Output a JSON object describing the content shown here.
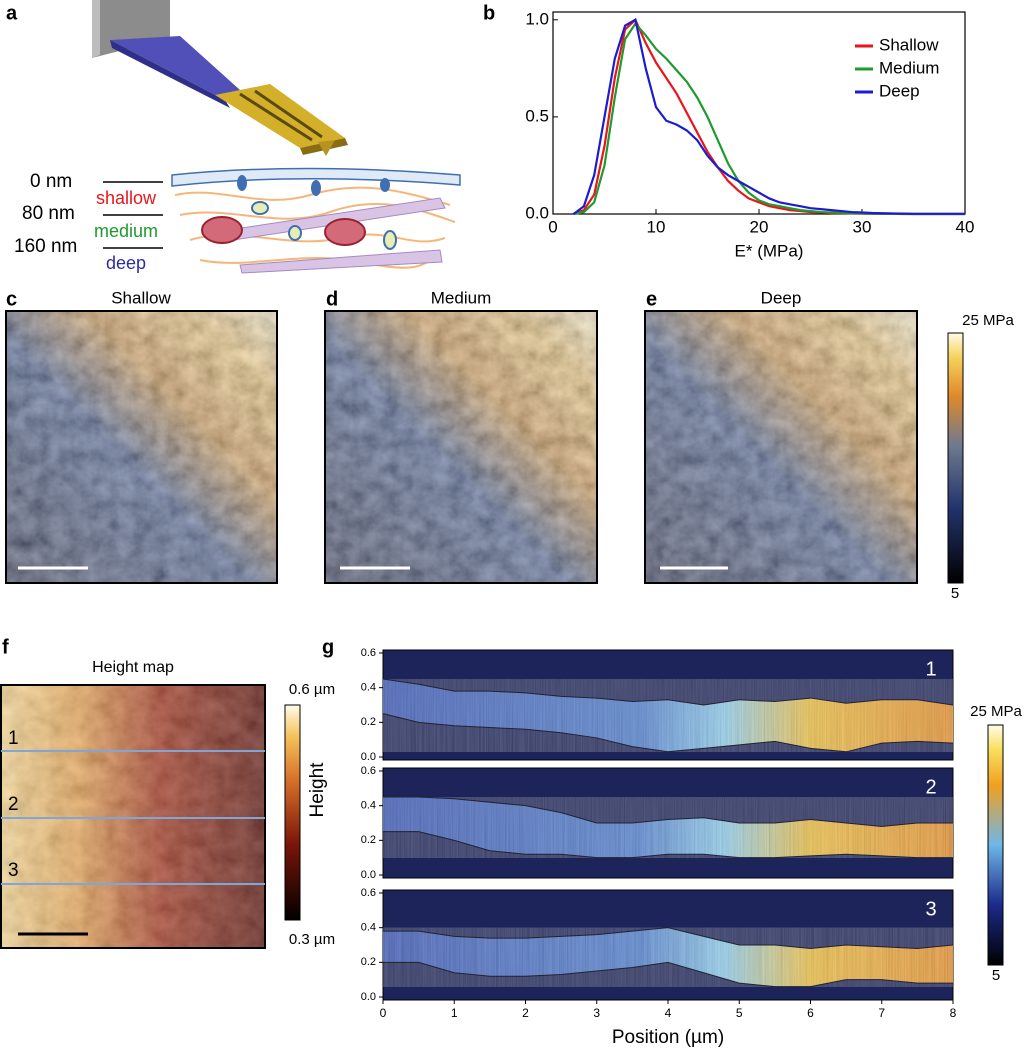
{
  "panel_labels": [
    "a",
    "b",
    "c",
    "d",
    "e",
    "f",
    "g"
  ],
  "schematic": {
    "depths": [
      "0 nm",
      "80 nm",
      "160 nm"
    ],
    "layers": [
      "shallow",
      "medium",
      "deep"
    ]
  },
  "maps": {
    "titles": [
      "Shallow",
      "Medium",
      "Deep"
    ],
    "colorbar": {
      "max": "25 MPa",
      "min": "5"
    }
  },
  "height_map": {
    "title": "Height map",
    "colorbar_label": "Height",
    "max": "0.6 µm",
    "min": "0.3 µm",
    "lines": [
      "1",
      "2",
      "3"
    ]
  },
  "chart_data": [
    {
      "type": "line",
      "xlabel": "E* (MPa)",
      "x": [
        2,
        3,
        4,
        5,
        6,
        7,
        8,
        9,
        10,
        11,
        12,
        13,
        14,
        15,
        16,
        17,
        18,
        19,
        20,
        21,
        22,
        23,
        24,
        25,
        26,
        27,
        28,
        29,
        30,
        31,
        32,
        33,
        34,
        35,
        36,
        37,
        38,
        39,
        40
      ],
      "xlim": [
        0,
        40
      ],
      "xticks": [
        0,
        10,
        20,
        30,
        40
      ],
      "ylim": [
        0,
        1.04
      ],
      "yticks": [
        {
          "value": 0,
          "label": "0.0"
        },
        {
          "value": 0.5,
          "label": "0.5"
        },
        {
          "value": 1,
          "label": "1.0"
        }
      ],
      "legend": "upper right",
      "series": [
        {
          "name": "Shallow",
          "color": "#e8161b",
          "values": [
            0,
            0.02,
            0.1,
            0.35,
            0.7,
            0.95,
            1.0,
            0.88,
            0.78,
            0.7,
            0.62,
            0.52,
            0.42,
            0.32,
            0.24,
            0.17,
            0.12,
            0.08,
            0.06,
            0.04,
            0.03,
            0.02,
            0.015,
            0.01,
            0.008,
            0.005,
            0.004,
            0.003,
            0.002,
            0.001,
            0.001,
            0.001,
            0,
            0,
            0,
            0,
            0,
            0,
            0
          ]
        },
        {
          "name": "Medium",
          "color": "#1f9a2e",
          "values": [
            0,
            0.01,
            0.06,
            0.25,
            0.6,
            0.9,
            0.98,
            0.92,
            0.85,
            0.8,
            0.74,
            0.68,
            0.6,
            0.5,
            0.38,
            0.26,
            0.17,
            0.11,
            0.07,
            0.05,
            0.04,
            0.03,
            0.02,
            0.015,
            0.01,
            0.008,
            0.006,
            0.004,
            0.003,
            0.002,
            0.001,
            0.001,
            0.001,
            0,
            0,
            0,
            0,
            0,
            0
          ]
        },
        {
          "name": "Deep",
          "color": "#1c1ccf",
          "values": [
            0,
            0.04,
            0.2,
            0.5,
            0.8,
            0.97,
            1.0,
            0.75,
            0.55,
            0.48,
            0.46,
            0.43,
            0.38,
            0.3,
            0.24,
            0.2,
            0.17,
            0.14,
            0.11,
            0.08,
            0.06,
            0.05,
            0.04,
            0.03,
            0.025,
            0.02,
            0.015,
            0.01,
            0.008,
            0.005,
            0.004,
            0.003,
            0.002,
            0.001,
            0.001,
            0.001,
            0.001,
            0.001,
            0.001
          ]
        }
      ]
    },
    {
      "type": "profile",
      "xlabel": "Position (µm)",
      "x": [
        0,
        0.5,
        1,
        1.5,
        2,
        2.5,
        3,
        3.5,
        4,
        4.5,
        5,
        5.5,
        6,
        6.5,
        7,
        7.5,
        8
      ],
      "xlim": [
        0,
        8
      ],
      "xticks": [
        0,
        1,
        2,
        3,
        4,
        5,
        6,
        7,
        8
      ],
      "ylim": [
        0,
        0.6
      ],
      "yticks": [
        {
          "value": 0,
          "label": "0.0"
        },
        {
          "value": 0.2,
          "label": "0.2"
        },
        {
          "value": 0.4,
          "label": "0.4"
        },
        {
          "value": 0.6,
          "label": "0.6"
        }
      ],
      "colorbar": {
        "max": "25 MPa",
        "min": "5"
      },
      "panels": [
        {
          "label": "1",
          "upper": [
            0.45,
            0.42,
            0.38,
            0.38,
            0.37,
            0.35,
            0.34,
            0.32,
            0.33,
            0.3,
            0.33,
            0.32,
            0.34,
            0.31,
            0.33,
            0.33,
            0.3
          ],
          "lower": [
            0.25,
            0.2,
            0.18,
            0.17,
            0.16,
            0.14,
            0.11,
            0.06,
            0.03,
            0.05,
            0.07,
            0.09,
            0.05,
            0.03,
            0.08,
            0.09,
            0.08
          ]
        },
        {
          "label": "2",
          "upper": [
            0.45,
            0.45,
            0.44,
            0.42,
            0.4,
            0.36,
            0.3,
            0.3,
            0.32,
            0.33,
            0.3,
            0.3,
            0.32,
            0.3,
            0.28,
            0.3,
            0.3
          ],
          "lower": [
            0.25,
            0.25,
            0.2,
            0.14,
            0.12,
            0.12,
            0.1,
            0.1,
            0.12,
            0.12,
            0.1,
            0.1,
            0.11,
            0.12,
            0.11,
            0.1,
            0.1
          ]
        },
        {
          "label": "3",
          "upper": [
            0.38,
            0.38,
            0.35,
            0.34,
            0.34,
            0.35,
            0.36,
            0.38,
            0.4,
            0.35,
            0.3,
            0.3,
            0.28,
            0.3,
            0.29,
            0.28,
            0.3
          ],
          "lower": [
            0.2,
            0.2,
            0.14,
            0.12,
            0.12,
            0.13,
            0.15,
            0.17,
            0.2,
            0.14,
            0.08,
            0.06,
            0.06,
            0.1,
            0.1,
            0.08,
            0.08
          ]
        }
      ]
    }
  ]
}
